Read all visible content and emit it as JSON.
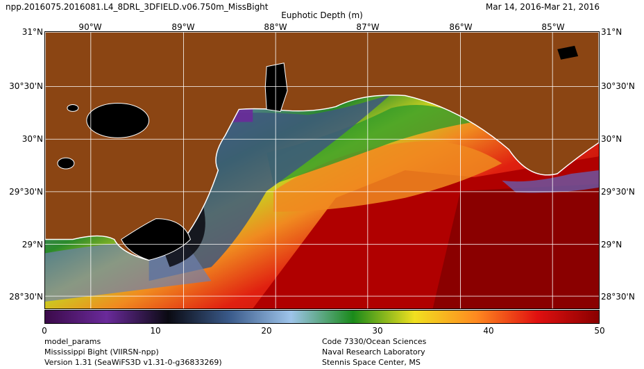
{
  "header": {
    "product": "npp.2016075.2016081.L4_8DRL_3DFIELD.v06.750m_MissBight",
    "date_range": "Mar 14, 2016-Mar 21, 2016",
    "variable": "Euphotic Depth (m)"
  },
  "map": {
    "longitude_labels": [
      "90°W",
      "89°W",
      "88°W",
      "87°W",
      "86°W",
      "85°W"
    ],
    "latitude_labels": [
      "31°N",
      "30°30'N",
      "30°N",
      "29°30'N",
      "29°N",
      "28°30'N"
    ],
    "lon_range": [
      -90.4,
      -84.4
    ],
    "lat_range": [
      28.3,
      31.0
    ],
    "land_color": "#8B4513",
    "inland_water_color": "#000000",
    "coastline_color": "#ffffff",
    "grid_color": "#ffffff"
  },
  "colorbar": {
    "range": [
      0,
      50
    ],
    "tick_labels": [
      "0",
      "10",
      "20",
      "30",
      "40",
      "50"
    ],
    "colors": [
      "#3b0a4a",
      "#6a2a9a",
      "#0a0a12",
      "#3a5a8a",
      "#9ec4ea",
      "#1a8a1a",
      "#f0e020",
      "#ff8a20",
      "#e01010",
      "#8a0000"
    ]
  },
  "footer": {
    "left": [
      "model_params",
      "Mississippi Bight (VIIRSN-npp)",
      "Version 1.31 (SeaWiFS3D v1.31-0-g36833269)"
    ],
    "right": [
      "Code 7330/Ocean Sciences",
      "Naval Research Laboratory",
      "Stennis Space Center, MS"
    ]
  }
}
